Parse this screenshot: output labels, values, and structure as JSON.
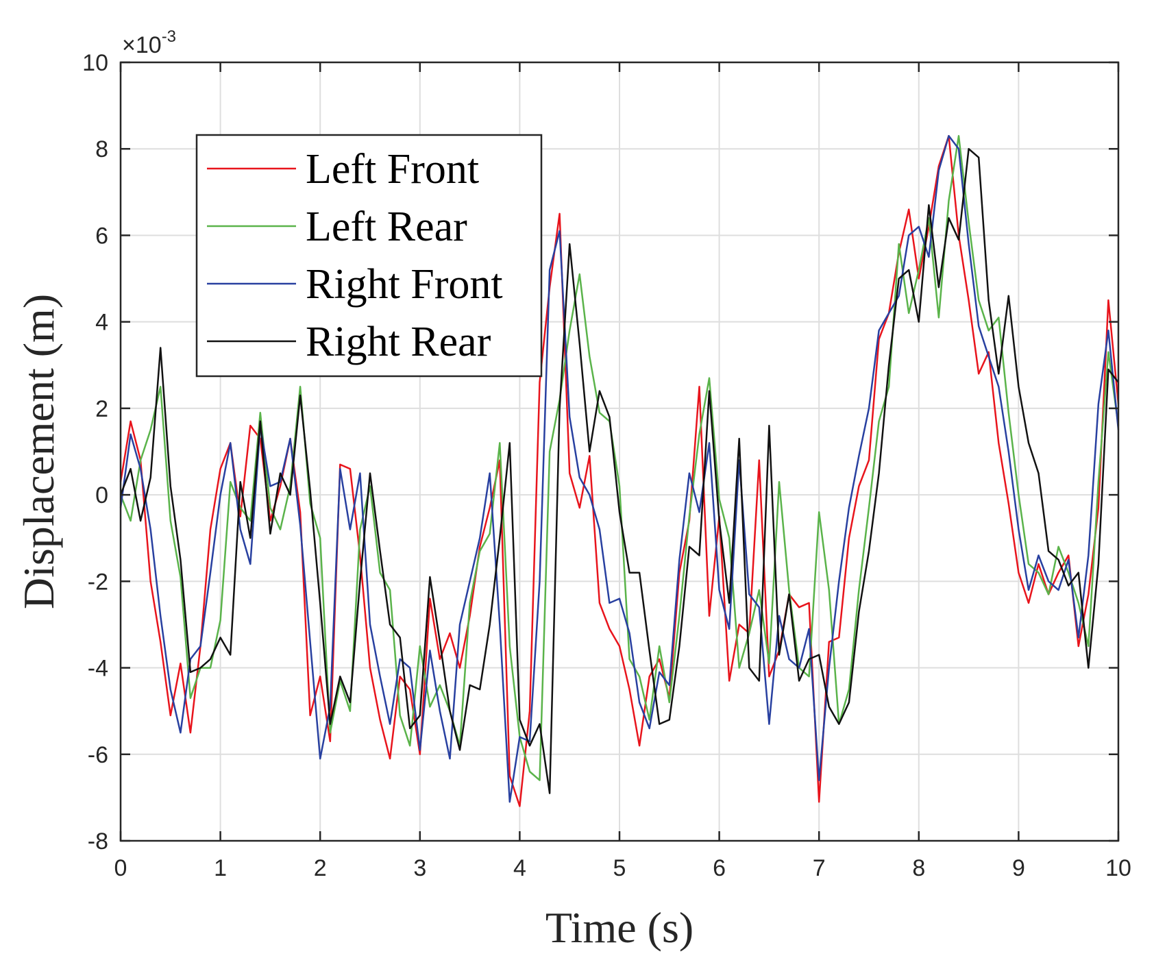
{
  "chart_data": {
    "type": "line",
    "xlabel": "Time (s)",
    "ylabel": "Displacement (m)",
    "xlim": [
      0,
      10
    ],
    "ylim": [
      -8,
      10
    ],
    "xticks": [
      "0",
      "1",
      "2",
      "3",
      "4",
      "5",
      "6",
      "7",
      "8",
      "9",
      "10"
    ],
    "yticks": [
      "-8",
      "-6",
      "-4",
      "-2",
      "0",
      "2",
      "4",
      "6",
      "8",
      "10"
    ],
    "y_multiplier": {
      "base": "×10",
      "exponent": "-3"
    },
    "grid": true,
    "legend_position": "top-left",
    "series": [
      {
        "name": "Left Front",
        "color": "#e8141c",
        "x": [
          0,
          0.1,
          0.2,
          0.3,
          0.4,
          0.5,
          0.6,
          0.7,
          0.8,
          0.9,
          1.0,
          1.1,
          1.2,
          1.3,
          1.4,
          1.5,
          1.6,
          1.7,
          1.8,
          1.9,
          2.0,
          2.1,
          2.2,
          2.3,
          2.4,
          2.5,
          2.6,
          2.7,
          2.8,
          2.9,
          3.0,
          3.1,
          3.2,
          3.3,
          3.4,
          3.5,
          3.6,
          3.7,
          3.8,
          3.9,
          4.0,
          4.1,
          4.2,
          4.3,
          4.4,
          4.5,
          4.6,
          4.7,
          4.8,
          4.9,
          5.0,
          5.1,
          5.2,
          5.3,
          5.4,
          5.5,
          5.6,
          5.7,
          5.8,
          5.9,
          6.0,
          6.1,
          6.2,
          6.3,
          6.4,
          6.5,
          6.6,
          6.7,
          6.8,
          6.9,
          7.0,
          7.1,
          7.2,
          7.3,
          7.4,
          7.5,
          7.6,
          7.7,
          7.8,
          7.9,
          8.0,
          8.1,
          8.2,
          8.3,
          8.4,
          8.5,
          8.6,
          8.7,
          8.8,
          8.9,
          9.0,
          9.1,
          9.2,
          9.3,
          9.4,
          9.5,
          9.6,
          9.7,
          9.8,
          9.9,
          10.0
        ],
        "values": [
          0.3,
          1.7,
          0.8,
          -2.0,
          -3.4,
          -5.1,
          -3.9,
          -5.5,
          -3.5,
          -0.8,
          0.6,
          1.2,
          -0.5,
          1.6,
          1.3,
          -0.6,
          0.2,
          1.3,
          -0.4,
          -5.1,
          -4.2,
          -5.7,
          0.7,
          0.6,
          -1.4,
          -4.0,
          -5.2,
          -6.1,
          -4.2,
          -4.5,
          -6.0,
          -2.4,
          -3.8,
          -3.2,
          -4.0,
          -2.8,
          -1.2,
          -0.3,
          0.8,
          -6.5,
          -7.2,
          -5.0,
          2.6,
          4.8,
          6.5,
          0.5,
          -0.3,
          0.9,
          -2.5,
          -3.1,
          -3.5,
          -4.5,
          -5.8,
          -4.2,
          -3.8,
          -4.7,
          -1.8,
          -0.6,
          2.5,
          -2.8,
          -0.5,
          -4.3,
          -3.0,
          -3.2,
          0.8,
          -4.2,
          -3.6,
          -2.3,
          -2.6,
          -2.5,
          -7.1,
          -3.4,
          -3.3,
          -1.0,
          0.2,
          0.8,
          3.6,
          4.2,
          5.6,
          6.6,
          5.0,
          6.2,
          7.6,
          8.3,
          6.0,
          4.5,
          2.8,
          3.3,
          1.2,
          -0.2,
          -1.8,
          -2.5,
          -1.6,
          -2.3,
          -1.8,
          -1.4,
          -3.5,
          -2.3,
          -0.3,
          4.5,
          2.1
        ]
      },
      {
        "name": "Left Rear",
        "color": "#5ab34a",
        "x": [
          0,
          0.1,
          0.2,
          0.3,
          0.4,
          0.5,
          0.6,
          0.7,
          0.8,
          0.9,
          1.0,
          1.1,
          1.2,
          1.3,
          1.4,
          1.5,
          1.6,
          1.7,
          1.8,
          1.9,
          2.0,
          2.1,
          2.2,
          2.3,
          2.4,
          2.5,
          2.6,
          2.7,
          2.8,
          2.9,
          3.0,
          3.1,
          3.2,
          3.3,
          3.4,
          3.5,
          3.6,
          3.7,
          3.8,
          3.9,
          4.0,
          4.1,
          4.2,
          4.3,
          4.4,
          4.5,
          4.6,
          4.7,
          4.8,
          4.9,
          5.0,
          5.1,
          5.2,
          5.3,
          5.4,
          5.5,
          5.6,
          5.7,
          5.8,
          5.9,
          6.0,
          6.1,
          6.2,
          6.3,
          6.4,
          6.5,
          6.6,
          6.7,
          6.8,
          6.9,
          7.0,
          7.1,
          7.2,
          7.3,
          7.4,
          7.5,
          7.6,
          7.7,
          7.8,
          7.9,
          8.0,
          8.1,
          8.2,
          8.3,
          8.4,
          8.5,
          8.6,
          8.7,
          8.8,
          8.9,
          9.0,
          9.1,
          9.2,
          9.3,
          9.4,
          9.5,
          9.6,
          9.7,
          9.8,
          9.9,
          10.0
        ],
        "values": [
          0.0,
          -0.6,
          0.8,
          1.5,
          2.5,
          -0.6,
          -1.9,
          -4.7,
          -4.0,
          -4.0,
          -2.9,
          0.3,
          -0.3,
          -0.6,
          1.9,
          -0.3,
          -0.8,
          0.2,
          2.5,
          -0.2,
          -1.0,
          -5.5,
          -4.3,
          -5.0,
          -0.8,
          0.2,
          -1.8,
          -2.2,
          -5.1,
          -5.8,
          -3.5,
          -4.9,
          -4.4,
          -5.0,
          -5.8,
          -2.5,
          -1.3,
          -0.9,
          1.2,
          -3.5,
          -5.6,
          -6.4,
          -6.6,
          1.0,
          2.2,
          3.8,
          5.1,
          3.2,
          1.9,
          1.7,
          0.2,
          -3.8,
          -4.2,
          -5.2,
          -3.5,
          -4.8,
          -2.8,
          -0.5,
          1.4,
          2.7,
          -0.1,
          -1.0,
          -4.0,
          -3.2,
          -2.2,
          -3.9,
          0.3,
          -2.2,
          -4.0,
          -4.2,
          -0.4,
          -2.2,
          -5.3,
          -4.5,
          -2.2,
          -0.3,
          1.7,
          2.5,
          5.8,
          4.2,
          5.2,
          6.4,
          4.1,
          6.8,
          8.3,
          6.3,
          4.5,
          3.8,
          4.1,
          1.9,
          0.0,
          -1.6,
          -1.8,
          -2.3,
          -1.2,
          -1.8,
          -2.5,
          -3.5,
          0.3,
          3.3,
          1.6
        ]
      },
      {
        "name": "Right Front",
        "color": "#2840a0",
        "x": [
          0,
          0.1,
          0.2,
          0.3,
          0.4,
          0.5,
          0.6,
          0.7,
          0.8,
          0.9,
          1.0,
          1.1,
          1.2,
          1.3,
          1.4,
          1.5,
          1.6,
          1.7,
          1.8,
          1.9,
          2.0,
          2.1,
          2.2,
          2.3,
          2.4,
          2.5,
          2.6,
          2.7,
          2.8,
          2.9,
          3.0,
          3.1,
          3.2,
          3.3,
          3.4,
          3.5,
          3.6,
          3.7,
          3.8,
          3.9,
          4.0,
          4.1,
          4.2,
          4.3,
          4.4,
          4.5,
          4.6,
          4.7,
          4.8,
          4.9,
          5.0,
          5.1,
          5.2,
          5.3,
          5.4,
          5.5,
          5.6,
          5.7,
          5.8,
          5.9,
          6.0,
          6.1,
          6.2,
          6.3,
          6.4,
          6.5,
          6.6,
          6.7,
          6.8,
          6.9,
          7.0,
          7.1,
          7.2,
          7.3,
          7.4,
          7.5,
          7.6,
          7.7,
          7.8,
          7.9,
          8.0,
          8.1,
          8.2,
          8.3,
          8.4,
          8.5,
          8.6,
          8.7,
          8.8,
          8.9,
          9.0,
          9.1,
          9.2,
          9.3,
          9.4,
          9.5,
          9.6,
          9.7,
          9.8,
          9.9,
          10.0
        ],
        "values": [
          -0.3,
          1.4,
          0.6,
          -0.8,
          -2.8,
          -4.5,
          -5.5,
          -3.8,
          -3.5,
          -1.8,
          0.0,
          1.2,
          -0.8,
          -1.6,
          1.6,
          0.2,
          0.3,
          1.3,
          -0.7,
          -3.4,
          -6.1,
          -4.9,
          0.6,
          -0.8,
          0.5,
          -3.0,
          -4.2,
          -5.3,
          -3.8,
          -4.0,
          -5.9,
          -3.6,
          -5.0,
          -6.1,
          -3.0,
          -2.0,
          -1.0,
          0.5,
          -3.0,
          -7.1,
          -5.6,
          -5.7,
          -2.0,
          5.2,
          6.1,
          1.8,
          0.4,
          0.0,
          -0.8,
          -2.5,
          -2.4,
          -3.2,
          -4.8,
          -5.4,
          -4.1,
          -4.4,
          -1.5,
          0.5,
          -0.4,
          1.2,
          -2.2,
          -3.1,
          0.8,
          -2.3,
          -2.6,
          -5.3,
          -2.8,
          -3.8,
          -4.0,
          -3.1,
          -6.6,
          -4.0,
          -2.0,
          -0.3,
          0.9,
          2.0,
          3.8,
          4.2,
          4.6,
          6.0,
          6.2,
          5.5,
          7.5,
          8.3,
          8.0,
          5.8,
          3.9,
          3.2,
          2.5,
          1.0,
          -0.8,
          -2.2,
          -1.4,
          -2.0,
          -2.2,
          -1.5,
          -3.3,
          -1.4,
          2.1,
          3.8,
          1.5
        ]
      },
      {
        "name": "Right Rear",
        "color": "#111111",
        "x": [
          0,
          0.1,
          0.2,
          0.3,
          0.4,
          0.5,
          0.6,
          0.7,
          0.8,
          0.9,
          1.0,
          1.1,
          1.2,
          1.3,
          1.4,
          1.5,
          1.6,
          1.7,
          1.8,
          1.9,
          2.0,
          2.1,
          2.2,
          2.3,
          2.4,
          2.5,
          2.6,
          2.7,
          2.8,
          2.9,
          3.0,
          3.1,
          3.2,
          3.3,
          3.4,
          3.5,
          3.6,
          3.7,
          3.8,
          3.9,
          4.0,
          4.1,
          4.2,
          4.3,
          4.4,
          4.5,
          4.6,
          4.7,
          4.8,
          4.9,
          5.0,
          5.1,
          5.2,
          5.3,
          5.4,
          5.5,
          5.6,
          5.7,
          5.8,
          5.9,
          6.0,
          6.1,
          6.2,
          6.3,
          6.4,
          6.5,
          6.6,
          6.7,
          6.8,
          6.9,
          7.0,
          7.1,
          7.2,
          7.3,
          7.4,
          7.5,
          7.6,
          7.7,
          7.8,
          7.9,
          8.0,
          8.1,
          8.2,
          8.3,
          8.4,
          8.5,
          8.6,
          8.7,
          8.8,
          8.9,
          9.0,
          9.1,
          9.2,
          9.3,
          9.4,
          9.5,
          9.6,
          9.7,
          9.8,
          9.9,
          10.0
        ],
        "values": [
          0.0,
          0.6,
          -0.6,
          0.4,
          3.4,
          0.2,
          -1.5,
          -4.1,
          -4.0,
          -3.8,
          -3.3,
          -3.7,
          0.3,
          -1.0,
          1.7,
          -0.9,
          0.5,
          0.0,
          2.3,
          0.1,
          -2.5,
          -5.3,
          -4.2,
          -4.8,
          -2.0,
          0.5,
          -1.3,
          -3.0,
          -3.3,
          -5.4,
          -5.1,
          -1.9,
          -3.4,
          -5.0,
          -5.9,
          -4.4,
          -4.5,
          -3.0,
          -1.0,
          1.2,
          -5.2,
          -5.8,
          -5.3,
          -6.9,
          2.0,
          5.8,
          3.5,
          1.0,
          2.4,
          1.8,
          -0.4,
          -1.8,
          -1.8,
          -3.6,
          -5.3,
          -5.2,
          -3.5,
          -1.2,
          -1.4,
          2.4,
          -0.6,
          -2.5,
          1.3,
          -4.0,
          -4.3,
          1.6,
          -3.7,
          -2.3,
          -4.3,
          -3.8,
          -3.7,
          -4.9,
          -5.3,
          -4.8,
          -2.7,
          -1.3,
          0.5,
          3.0,
          5.0,
          5.2,
          4.0,
          6.7,
          4.8,
          6.4,
          5.9,
          8.0,
          7.8,
          4.5,
          2.8,
          4.6,
          2.5,
          1.2,
          0.5,
          -1.3,
          -1.5,
          -2.1,
          -1.8,
          -4.0,
          -1.6,
          2.9,
          2.6
        ]
      }
    ]
  }
}
